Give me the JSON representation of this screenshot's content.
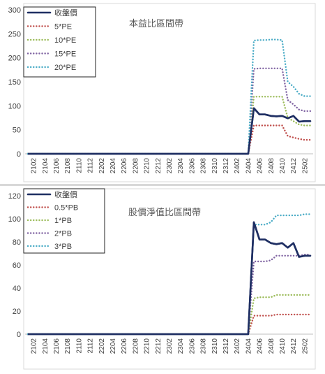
{
  "chart_data": [
    {
      "type": "line",
      "title": "本益比區間帶",
      "xlabel": "",
      "ylabel": "",
      "ylim": [
        0,
        300
      ],
      "yticks": [
        0,
        50,
        100,
        150,
        200,
        250,
        300
      ],
      "grid": false,
      "legend": "top-left",
      "x_tick_labels": [
        "2102",
        "2104",
        "2106",
        "2108",
        "2110",
        "2112",
        "2202",
        "2204",
        "2206",
        "2208",
        "2210",
        "2212",
        "2302",
        "2304",
        "2306",
        "2308",
        "2310",
        "2312",
        "2402",
        "2404",
        "2406",
        "2408",
        "2410",
        "2412",
        "2502"
      ],
      "x": [
        "2101",
        "2102",
        "2103",
        "2104",
        "2105",
        "2106",
        "2107",
        "2108",
        "2109",
        "2110",
        "2111",
        "2112",
        "2201",
        "2202",
        "2203",
        "2204",
        "2205",
        "2206",
        "2207",
        "2208",
        "2209",
        "2210",
        "2211",
        "2212",
        "2301",
        "2302",
        "2303",
        "2304",
        "2305",
        "2306",
        "2307",
        "2308",
        "2309",
        "2310",
        "2311",
        "2312",
        "2401",
        "2402",
        "2403",
        "2404",
        "2405",
        "2406",
        "2407",
        "2408",
        "2409",
        "2410",
        "2411",
        "2412",
        "2501",
        "2502",
        "2503"
      ],
      "series": [
        {
          "name": "收盤價",
          "color": "#1f2f63",
          "style": "solid",
          "values": [
            0,
            0,
            0,
            0,
            0,
            0,
            0,
            0,
            0,
            0,
            0,
            0,
            0,
            0,
            0,
            0,
            0,
            0,
            0,
            0,
            0,
            0,
            0,
            0,
            0,
            0,
            0,
            0,
            0,
            0,
            0,
            0,
            0,
            0,
            0,
            0,
            0,
            0,
            0,
            0,
            95,
            82,
            82,
            79,
            78,
            79,
            74,
            79,
            67,
            68,
            68
          ]
        },
        {
          "name": "5*PE",
          "color": "#c0504d",
          "style": "dotted",
          "values": [
            0,
            0,
            0,
            0,
            0,
            0,
            0,
            0,
            0,
            0,
            0,
            0,
            0,
            0,
            0,
            0,
            0,
            0,
            0,
            0,
            0,
            0,
            0,
            0,
            0,
            0,
            0,
            0,
            0,
            0,
            0,
            0,
            0,
            0,
            0,
            0,
            0,
            0,
            0,
            0,
            59,
            59,
            59,
            59,
            59,
            59,
            37,
            34,
            31,
            29,
            29
          ]
        },
        {
          "name": "10*PE",
          "color": "#9bbb59",
          "style": "dotted",
          "values": [
            0,
            0,
            0,
            0,
            0,
            0,
            0,
            0,
            0,
            0,
            0,
            0,
            0,
            0,
            0,
            0,
            0,
            0,
            0,
            0,
            0,
            0,
            0,
            0,
            0,
            0,
            0,
            0,
            0,
            0,
            0,
            0,
            0,
            0,
            0,
            0,
            0,
            0,
            0,
            0,
            119,
            119,
            119,
            119,
            119,
            119,
            75,
            68,
            61,
            59,
            59
          ]
        },
        {
          "name": "15*PE",
          "color": "#8064a2",
          "style": "dotted",
          "values": [
            0,
            0,
            0,
            0,
            0,
            0,
            0,
            0,
            0,
            0,
            0,
            0,
            0,
            0,
            0,
            0,
            0,
            0,
            0,
            0,
            0,
            0,
            0,
            0,
            0,
            0,
            0,
            0,
            0,
            0,
            0,
            0,
            0,
            0,
            0,
            0,
            0,
            0,
            0,
            0,
            177,
            178,
            178,
            178,
            178,
            178,
            112,
            103,
            92,
            89,
            89
          ]
        },
        {
          "name": "20*PE",
          "color": "#4bacc6",
          "style": "dotted",
          "values": [
            0,
            0,
            0,
            0,
            0,
            0,
            0,
            0,
            0,
            0,
            0,
            0,
            0,
            0,
            0,
            0,
            0,
            0,
            0,
            0,
            0,
            0,
            0,
            0,
            0,
            0,
            0,
            0,
            0,
            0,
            0,
            0,
            0,
            0,
            0,
            0,
            0,
            0,
            0,
            0,
            236,
            237,
            237,
            238,
            238,
            237,
            150,
            140,
            125,
            120,
            120
          ]
        }
      ]
    },
    {
      "type": "line",
      "title": "股價淨值比區間帶",
      "xlabel": "",
      "ylabel": "",
      "ylim": [
        0,
        120
      ],
      "yticks": [
        0,
        20,
        40,
        60,
        80,
        100,
        120
      ],
      "grid": false,
      "legend": "top-left",
      "x_tick_labels": [
        "2102",
        "2104",
        "2106",
        "2108",
        "2110",
        "2112",
        "2202",
        "2204",
        "2206",
        "2208",
        "2210",
        "2212",
        "2302",
        "2304",
        "2306",
        "2308",
        "2310",
        "2312",
        "2402",
        "2404",
        "2406",
        "2408",
        "2410",
        "2412",
        "2502"
      ],
      "x": [
        "2101",
        "2102",
        "2103",
        "2104",
        "2105",
        "2106",
        "2107",
        "2108",
        "2109",
        "2110",
        "2111",
        "2112",
        "2201",
        "2202",
        "2203",
        "2204",
        "2205",
        "2206",
        "2207",
        "2208",
        "2209",
        "2210",
        "2211",
        "2212",
        "2301",
        "2302",
        "2303",
        "2304",
        "2305",
        "2306",
        "2307",
        "2308",
        "2309",
        "2310",
        "2311",
        "2312",
        "2401",
        "2402",
        "2403",
        "2404",
        "2405",
        "2406",
        "2407",
        "2408",
        "2409",
        "2410",
        "2411",
        "2412",
        "2501",
        "2502",
        "2503"
      ],
      "series": [
        {
          "name": "收盤價",
          "color": "#1f2f63",
          "style": "solid",
          "values": [
            0,
            0,
            0,
            0,
            0,
            0,
            0,
            0,
            0,
            0,
            0,
            0,
            0,
            0,
            0,
            0,
            0,
            0,
            0,
            0,
            0,
            0,
            0,
            0,
            0,
            0,
            0,
            0,
            0,
            0,
            0,
            0,
            0,
            0,
            0,
            0,
            0,
            0,
            0,
            0,
            97,
            82,
            82,
            79,
            78,
            79,
            75,
            79,
            67,
            68,
            68
          ]
        },
        {
          "name": "0.5*PB",
          "color": "#c0504d",
          "style": "dotted",
          "values": [
            0,
            0,
            0,
            0,
            0,
            0,
            0,
            0,
            0,
            0,
            0,
            0,
            0,
            0,
            0,
            0,
            0,
            0,
            0,
            0,
            0,
            0,
            0,
            0,
            0,
            0,
            0,
            0,
            0,
            0,
            0,
            0,
            0,
            0,
            0,
            0,
            0,
            0,
            0,
            0,
            16,
            16,
            16,
            16,
            17,
            17,
            17,
            17,
            17,
            17,
            17
          ]
        },
        {
          "name": "1*PB",
          "color": "#9bbb59",
          "style": "dotted",
          "values": [
            0,
            0,
            0,
            0,
            0,
            0,
            0,
            0,
            0,
            0,
            0,
            0,
            0,
            0,
            0,
            0,
            0,
            0,
            0,
            0,
            0,
            0,
            0,
            0,
            0,
            0,
            0,
            0,
            0,
            0,
            0,
            0,
            0,
            0,
            0,
            0,
            0,
            0,
            0,
            0,
            31,
            32,
            32,
            32,
            34,
            34,
            34,
            34,
            34,
            34,
            34
          ]
        },
        {
          "name": "2*PB",
          "color": "#8064a2",
          "style": "dotted",
          "values": [
            0,
            0,
            0,
            0,
            0,
            0,
            0,
            0,
            0,
            0,
            0,
            0,
            0,
            0,
            0,
            0,
            0,
            0,
            0,
            0,
            0,
            0,
            0,
            0,
            0,
            0,
            0,
            0,
            0,
            0,
            0,
            0,
            0,
            0,
            0,
            0,
            0,
            0,
            0,
            0,
            63,
            63,
            63,
            64,
            68,
            68,
            68,
            68,
            68,
            69,
            69
          ]
        },
        {
          "name": "3*PB",
          "color": "#4bacc6",
          "style": "dotted",
          "values": [
            0,
            0,
            0,
            0,
            0,
            0,
            0,
            0,
            0,
            0,
            0,
            0,
            0,
            0,
            0,
            0,
            0,
            0,
            0,
            0,
            0,
            0,
            0,
            0,
            0,
            0,
            0,
            0,
            0,
            0,
            0,
            0,
            0,
            0,
            0,
            0,
            0,
            0,
            0,
            0,
            95,
            95,
            95,
            97,
            103,
            103,
            103,
            103,
            103,
            104,
            104
          ]
        }
      ]
    }
  ]
}
